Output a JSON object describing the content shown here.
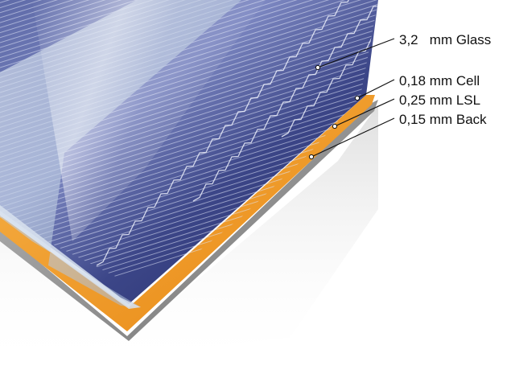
{
  "layers": [
    {
      "id": "glass",
      "label": "3,2   mm Glass"
    },
    {
      "id": "cell",
      "label": "0,18 mm Cell"
    },
    {
      "id": "lsl",
      "label": "0,25 mm LSL"
    },
    {
      "id": "back",
      "label": "0,15 mm Back"
    }
  ],
  "colors": {
    "cell_blue_dark": "#2a3470",
    "cell_blue_light": "#8c98cc",
    "encapsulant_orange": "#f39a1e",
    "glass_edge": "#c9d6e6",
    "back_sheet_gray": "#8e8e8e",
    "leader_line": "#111111"
  }
}
